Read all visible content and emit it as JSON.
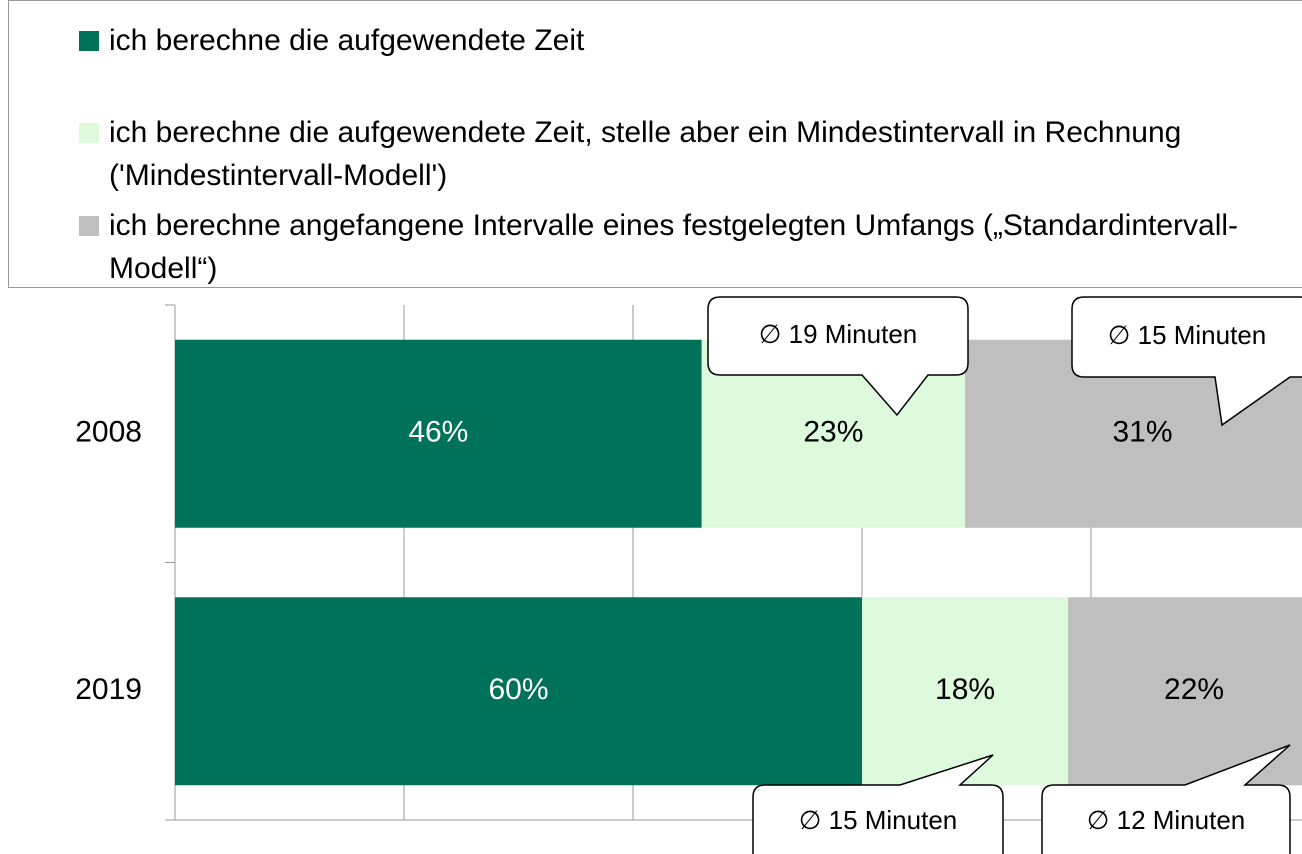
{
  "chart_data": {
    "type": "stacked-bar-horizontal",
    "categories": [
      "2008",
      "2019"
    ],
    "series": [
      {
        "name": "ich berechne die aufgewendete Zeit",
        "color": "#00725a",
        "values": [
          46,
          60
        ],
        "value_labels": [
          "46%",
          "60%"
        ]
      },
      {
        "name": "ich berechne die aufgewendete Zeit, stelle aber ein Mindestintervall in Rechnung ('Mindestintervall-Modell')",
        "color": "#ddfadc",
        "values": [
          23,
          18
        ],
        "value_labels": [
          "23%",
          "18%"
        ],
        "callouts": [
          "∅ 19 Minuten",
          "∅ 15 Minuten"
        ]
      },
      {
        "name": "ich berechne angefangene Intervalle eines festgelegten Umfangs („Standardintervall-Modell“)",
        "color": "#bfbfbf",
        "values": [
          31,
          22
        ],
        "value_labels": [
          "31%",
          "22%"
        ],
        "callouts": [
          "∅ 15 Minuten",
          "∅ 12 Minuten"
        ]
      }
    ],
    "xlim": [
      0,
      100
    ],
    "xticks": [
      0,
      20,
      40,
      60,
      80,
      100
    ],
    "grid": true
  }
}
